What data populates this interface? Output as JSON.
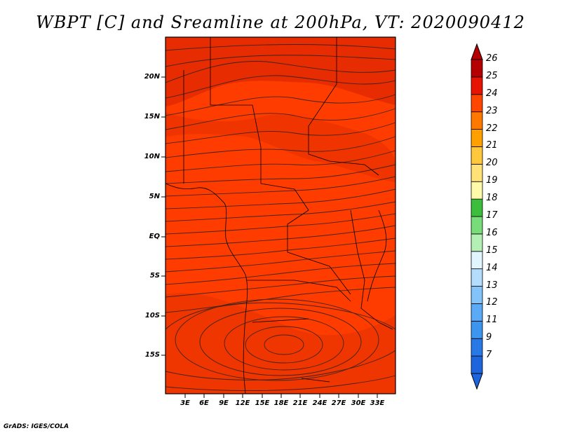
{
  "title": "WBPT [C] and Sreamline at 200hPa, VT: 2020090412",
  "credit": "GrADS: IGES/COLA",
  "map": {
    "variable": "WBPT [C]",
    "level": "200hPa",
    "valid_time": "2020090412",
    "lon_range": [
      0,
      36
    ],
    "lat_range": [
      -20,
      25
    ],
    "lat_labels": [
      "20N",
      "15N",
      "10N",
      "5N",
      "EQ",
      "5S",
      "10S",
      "15S"
    ],
    "lon_labels": [
      "3E",
      "6E",
      "9E",
      "12E",
      "15E",
      "18E",
      "21E",
      "24E",
      "27E",
      "30E",
      "33E"
    ],
    "background_color": "#ff3c00"
  },
  "colorbar": {
    "labels": [
      "7",
      "9",
      "11",
      "12",
      "13",
      "14",
      "15",
      "16",
      "17",
      "18",
      "19",
      "20",
      "21",
      "22",
      "23",
      "24",
      "25",
      "26"
    ],
    "colors": [
      "#1e64dc",
      "#2878e6",
      "#3c96f0",
      "#5aaaf5",
      "#82c3fa",
      "#b4dcfc",
      "#e1f5fe",
      "#b4f0b4",
      "#78dc78",
      "#3cbe3c",
      "#fffaaa",
      "#ffe178",
      "#ffc83c",
      "#ffa000",
      "#ff7800",
      "#ff4600",
      "#e61400",
      "#b40000"
    ]
  }
}
